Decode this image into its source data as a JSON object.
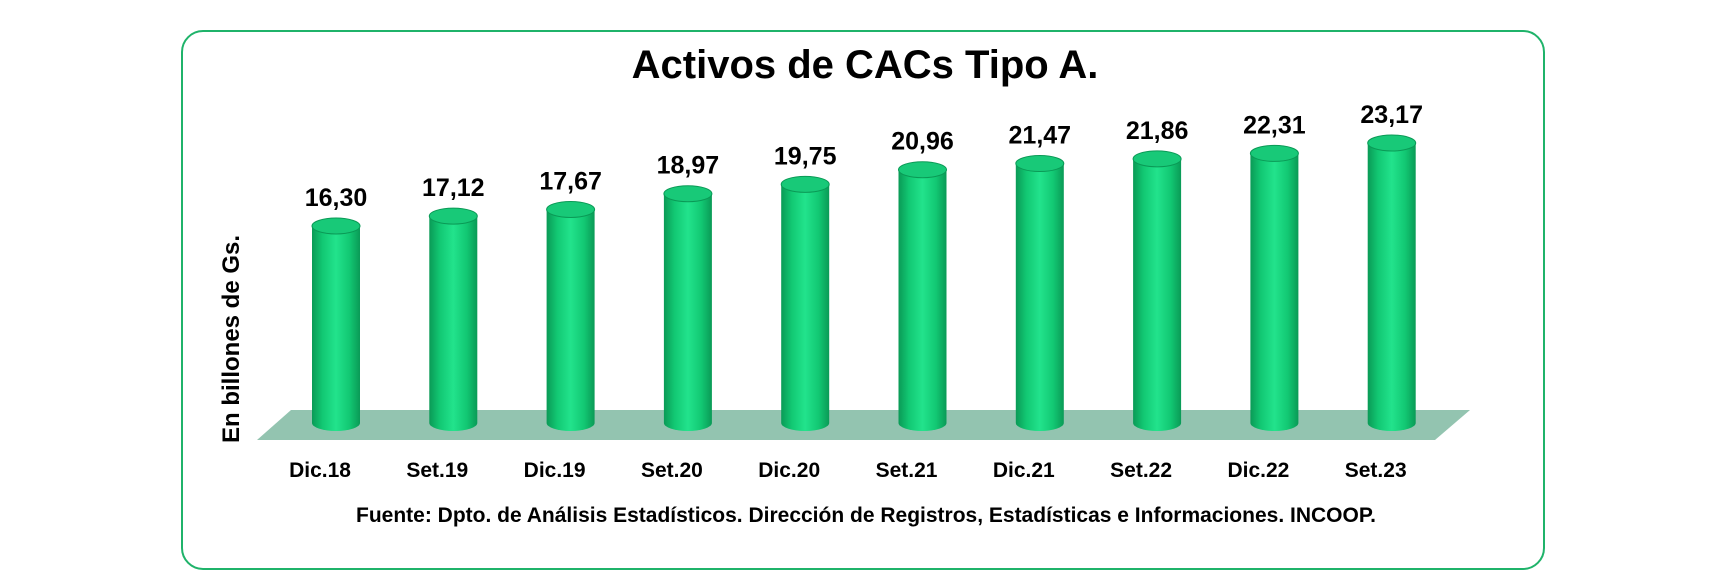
{
  "chart_data": {
    "type": "bar",
    "title": "Activos de CACs Tipo A.",
    "ylabel": "En billones de Gs.",
    "xlabel": "",
    "categories": [
      "Dic.18",
      "Set.19",
      "Dic.19",
      "Set.20",
      "Dic.20",
      "Set.21",
      "Dic.21",
      "Set.22",
      "Dic.22",
      "Set.23"
    ],
    "values": [
      16.3,
      17.12,
      17.67,
      18.97,
      19.75,
      20.96,
      21.47,
      21.86,
      22.31,
      23.17
    ],
    "value_labels": [
      "16,30",
      "17,12",
      "17,67",
      "18,97",
      "19,75",
      "20,96",
      "21,47",
      "21,86",
      "22,31",
      "23,17"
    ],
    "bar_shape": "cylinder",
    "ylim": [
      0,
      25
    ],
    "grid": false,
    "colors": {
      "bar": "#11d67b",
      "bar_dark": "#0a9a56",
      "bar_top": "#18c978",
      "floor": "#93c4b0",
      "frame": "#1fb36a"
    },
    "source": "Fuente: Dpto. de Análisis Estadísticos. Dirección de Registros, Estadísticas e Informaciones. INCOOP."
  }
}
